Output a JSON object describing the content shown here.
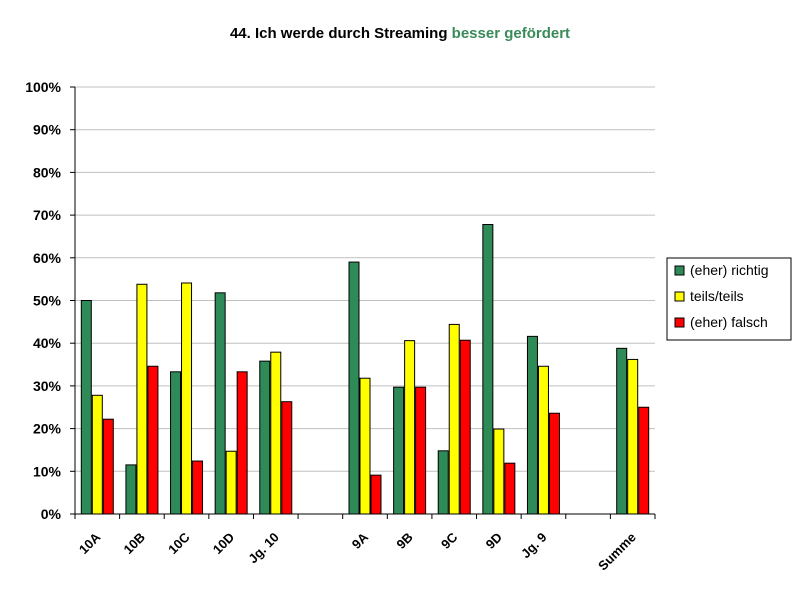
{
  "chart_data": {
    "type": "bar",
    "title_prefix": "44. Ich werde durch Streaming ",
    "title_highlight": "besser gefördert",
    "title_highlight_color": "#3a8a5a",
    "categories": [
      "10A",
      "10B",
      "10C",
      "10D",
      "Jg. 10",
      "",
      "9A",
      "9B",
      "9C",
      "9D",
      "Jg. 9",
      "",
      "Summe"
    ],
    "series": [
      {
        "name": "(eher) richtig",
        "color": "#2e8b57",
        "values": [
          50,
          11.5,
          33.3,
          51.8,
          35.8,
          null,
          59,
          29.7,
          14.8,
          67.8,
          41.6,
          null,
          38.8
        ]
      },
      {
        "name": "teils/teils",
        "color": "#ffff00",
        "values": [
          27.8,
          53.8,
          54.1,
          14.7,
          37.9,
          null,
          31.8,
          40.6,
          44.4,
          19.9,
          34.6,
          null,
          36.2
        ]
      },
      {
        "name": "(eher) falsch",
        "color": "#ff0000",
        "values": [
          22.2,
          34.6,
          12.4,
          33.3,
          26.3,
          null,
          9.1,
          29.7,
          40.7,
          11.9,
          23.6,
          null,
          25
        ]
      }
    ],
    "yticks": [
      "0%",
      "10%",
      "20%",
      "30%",
      "40%",
      "50%",
      "60%",
      "70%",
      "80%",
      "90%",
      "100%"
    ],
    "ylim": [
      0,
      100
    ],
    "grid": true,
    "legend_position": "right"
  }
}
